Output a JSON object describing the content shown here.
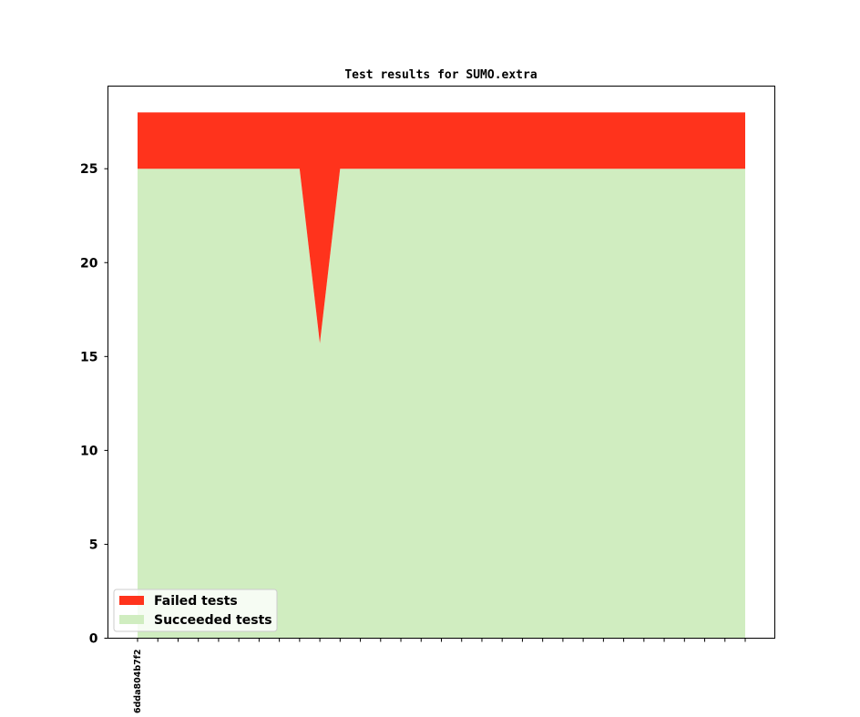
{
  "chart_data": {
    "type": "area",
    "title": "Test results for SUMO.extra",
    "xlabel": "",
    "ylabel": "",
    "x_tick_labels": [
      "6dda804b7f2"
    ],
    "x_count": 31,
    "ylim": [
      0,
      29.4
    ],
    "y_ticks": [
      0,
      5,
      10,
      15,
      20,
      25
    ],
    "grid": false,
    "legend_placement": "lower-left",
    "stacked": true,
    "series": [
      {
        "name": "Succeeded tests",
        "color": "#d0edc0",
        "values": [
          25,
          25,
          25,
          25,
          25,
          25,
          25,
          25,
          25,
          15.7,
          25,
          25,
          25,
          25,
          25,
          25,
          25,
          25,
          25,
          25,
          25,
          25,
          25,
          25,
          25,
          25,
          25,
          25,
          25,
          25,
          25
        ]
      },
      {
        "name": "Failed tests",
        "color": "#ff331c",
        "values": [
          3,
          3,
          3,
          3,
          3,
          3,
          3,
          3,
          3,
          12.3,
          3,
          3,
          3,
          3,
          3,
          3,
          3,
          3,
          3,
          3,
          3,
          3,
          3,
          3,
          3,
          3,
          3,
          3,
          3,
          3,
          3
        ]
      }
    ]
  }
}
